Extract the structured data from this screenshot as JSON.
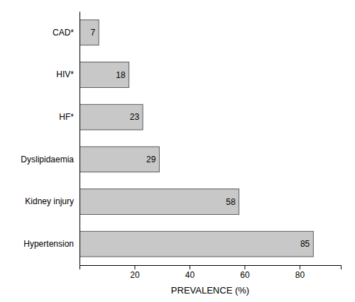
{
  "chart_data": {
    "type": "bar",
    "orientation": "horizontal",
    "categories": [
      "Hypertension",
      "Kidney injury",
      "Dyslipidaemia",
      "HF*",
      "HIV*",
      "CAD*"
    ],
    "values": [
      85,
      58,
      29,
      23,
      18,
      7
    ],
    "color": "#c8c8c8",
    "xlabel": "PREVALENCE (%)",
    "xlim": [
      0,
      95
    ],
    "xticks": [
      20,
      40,
      60,
      80
    ],
    "data_labels": true,
    "grid": false
  }
}
